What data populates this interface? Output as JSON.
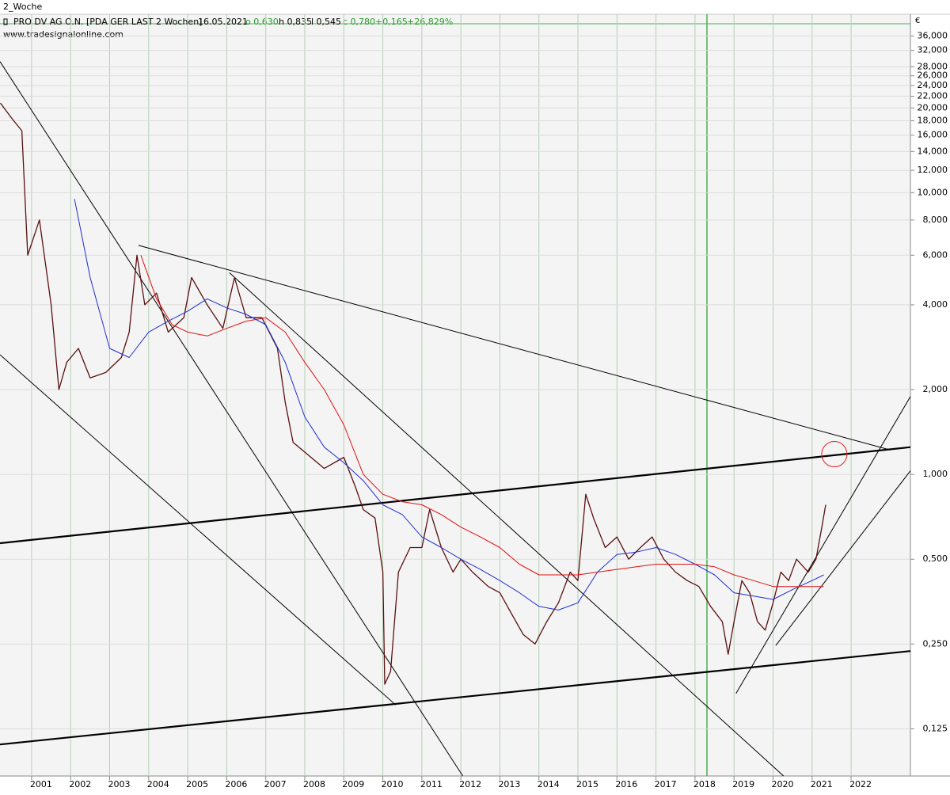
{
  "header": {
    "tab": "2_Woche",
    "instrument": "PRO DV AG O.N. [PDA GER LAST 2 Wochen]",
    "date": "16.05.2021",
    "open": "o 0,630",
    "high": "h 0,835",
    "low": "l 0,545",
    "close": "c 0,780",
    "change": "+0,165",
    "change_pct": "+26,829%",
    "source": "www.tradesignalonline.com",
    "currency": "€"
  },
  "chart_data": {
    "type": "line",
    "log_scale": true,
    "grid": true,
    "xlim": [
      2000.19,
      2023.52
    ],
    "ylim": [
      0.085,
      43
    ],
    "xticks": [
      2001,
      2002,
      2003,
      2004,
      2005,
      2006,
      2007,
      2008,
      2009,
      2010,
      2011,
      2012,
      2013,
      2014,
      2015,
      2016,
      2017,
      2018,
      2019,
      2020,
      2021,
      2022
    ],
    "yticks": [
      {
        "value": 36,
        "label": "36,000"
      },
      {
        "value": 32,
        "label": "32,000"
      },
      {
        "value": 28,
        "label": "28,000"
      },
      {
        "value": 26,
        "label": "26,000"
      },
      {
        "value": 24,
        "label": "24,000"
      },
      {
        "value": 22,
        "label": "22,000"
      },
      {
        "value": 20,
        "label": "20,000"
      },
      {
        "value": 18,
        "label": "18,000"
      },
      {
        "value": 16,
        "label": "16,000"
      },
      {
        "value": 14,
        "label": "14,000"
      },
      {
        "value": 12,
        "label": "12,000"
      },
      {
        "value": 10,
        "label": "10,000"
      },
      {
        "value": 8,
        "label": "8,000"
      },
      {
        "value": 6,
        "label": "6,000"
      },
      {
        "value": 4,
        "label": "4,000"
      },
      {
        "value": 2,
        "label": "2,000"
      },
      {
        "value": 1,
        "label": "1,000"
      },
      {
        "value": 0.5,
        "label": "0,500"
      },
      {
        "value": 0.25,
        "label": "0,250"
      },
      {
        "value": 0.125,
        "label": "0,125"
      }
    ],
    "series": [
      {
        "color": "#5a1010",
        "width": 1.3,
        "x": [
          2000.2,
          2000.5,
          2000.75,
          2000.9,
          2001.2,
          2001.5,
          2001.7,
          2001.9,
          2002.2,
          2002.5,
          2002.9,
          2003.3,
          2003.5,
          2003.7,
          2003.9,
          2004.2,
          2004.5,
          2004.9,
          2005.1,
          2005.5,
          2005.9,
          2006.2,
          2006.5,
          2006.9,
          2007.3,
          2007.5,
          2007.7,
          2008.0,
          2008.5,
          2009.0,
          2009.3,
          2009.5,
          2009.8,
          2010.0,
          2010.05,
          2010.2,
          2010.4,
          2010.7,
          2011.0,
          2011.2,
          2011.5,
          2011.8,
          2012.0,
          2012.3,
          2012.7,
          2013.0,
          2013.3,
          2013.6,
          2013.9,
          2014.2,
          2014.5,
          2014.8,
          2015.0,
          2015.2,
          2015.4,
          2015.7,
          2016.0,
          2016.3,
          2016.6,
          2016.9,
          2017.2,
          2017.5,
          2017.8,
          2018.1,
          2018.4,
          2018.7,
          2018.85,
          2019.0,
          2019.2,
          2019.4,
          2019.6,
          2019.8,
          2020.0,
          2020.2,
          2020.4,
          2020.6,
          2020.9,
          2021.1,
          2021.25,
          2021.35
        ],
        "values": [
          20.8,
          18.3,
          16.6,
          6.0,
          8.0,
          4.0,
          2.0,
          2.5,
          2.8,
          2.2,
          2.3,
          2.6,
          3.2,
          6.0,
          4.0,
          4.4,
          3.2,
          3.6,
          5.0,
          4.0,
          3.3,
          5.0,
          3.6,
          3.6,
          2.8,
          1.8,
          1.3,
          1.2,
          1.05,
          1.15,
          0.9,
          0.75,
          0.7,
          0.45,
          0.18,
          0.2,
          0.45,
          0.55,
          0.55,
          0.75,
          0.55,
          0.45,
          0.5,
          0.45,
          0.4,
          0.38,
          0.32,
          0.27,
          0.25,
          0.3,
          0.35,
          0.45,
          0.42,
          0.85,
          0.7,
          0.55,
          0.6,
          0.5,
          0.55,
          0.6,
          0.5,
          0.45,
          0.42,
          0.4,
          0.34,
          0.3,
          0.23,
          0.3,
          0.42,
          0.38,
          0.3,
          0.28,
          0.35,
          0.45,
          0.42,
          0.5,
          0.45,
          0.5,
          0.65,
          0.78
        ]
      },
      {
        "color": "#1f2fd0",
        "width": 1,
        "x": [
          2002.1,
          2002.5,
          2003,
          2003.5,
          2004,
          2004.5,
          2005,
          2005.5,
          2006,
          2006.5,
          2007,
          2007.5,
          2008,
          2008.5,
          2009,
          2009.5,
          2010,
          2010.5,
          2011,
          2011.5,
          2012,
          2012.5,
          2013,
          2013.5,
          2014,
          2014.5,
          2015,
          2015.5,
          2016,
          2016.5,
          2017,
          2017.5,
          2018,
          2018.5,
          2019,
          2019.5,
          2020,
          2020.5,
          2021,
          2021.3
        ],
        "values": [
          9.5,
          5.0,
          2.8,
          2.6,
          3.2,
          3.5,
          3.8,
          4.2,
          3.9,
          3.7,
          3.4,
          2.5,
          1.6,
          1.25,
          1.1,
          0.95,
          0.78,
          0.72,
          0.6,
          0.55,
          0.5,
          0.46,
          0.42,
          0.38,
          0.34,
          0.33,
          0.35,
          0.45,
          0.52,
          0.53,
          0.55,
          0.52,
          0.48,
          0.44,
          0.38,
          0.37,
          0.36,
          0.39,
          0.42,
          0.44
        ]
      },
      {
        "color": "#e01010",
        "width": 1,
        "x": [
          2003.8,
          2004.2,
          2004.6,
          2005,
          2005.5,
          2006,
          2006.5,
          2007,
          2007.5,
          2008,
          2008.5,
          2009,
          2009.5,
          2010,
          2010.5,
          2011,
          2011.5,
          2012,
          2012.5,
          2013,
          2013.5,
          2014,
          2014.5,
          2015,
          2015.5,
          2016,
          2016.5,
          2017,
          2017.5,
          2018,
          2018.5,
          2019,
          2019.5,
          2020,
          2020.5,
          2021,
          2021.3
        ],
        "values": [
          6.0,
          4.2,
          3.4,
          3.2,
          3.1,
          3.3,
          3.5,
          3.6,
          3.2,
          2.5,
          2.0,
          1.5,
          1.0,
          0.85,
          0.8,
          0.78,
          0.72,
          0.65,
          0.6,
          0.55,
          0.48,
          0.44,
          0.44,
          0.44,
          0.45,
          0.46,
          0.47,
          0.48,
          0.48,
          0.48,
          0.47,
          0.44,
          0.42,
          0.4,
          0.4,
          0.4,
          0.4
        ]
      }
    ],
    "trendlines": [
      {
        "x": [
          2000.19,
          2012.05
        ],
        "values": [
          29.2,
          0.085
        ],
        "width": 1
      },
      {
        "x": [
          2000.19,
          2010.33
        ],
        "values": [
          2.66,
          0.152
        ],
        "width": 1
      },
      {
        "x": [
          2003.74,
          2023.01
        ],
        "values": [
          6.5,
          1.22
        ],
        "width": 1
      },
      {
        "x": [
          2006.07,
          2020.27
        ],
        "values": [
          5.2,
          0.085
        ],
        "width": 1
      },
      {
        "x": [
          2000.19,
          2023.52
        ],
        "values": [
          0.57,
          1.25
        ],
        "width": 2.2
      },
      {
        "x": [
          2000.19,
          2023.52
        ],
        "values": [
          0.11,
          0.236
        ],
        "width": 2.2
      },
      {
        "x": [
          2019.05,
          2023.52
        ],
        "values": [
          0.167,
          1.89
        ],
        "width": 1
      },
      {
        "x": [
          2020.07,
          2023.52
        ],
        "values": [
          0.247,
          1.03
        ],
        "width": 1
      }
    ],
    "circle": {
      "x": 2021.57,
      "value": 1.18,
      "color": "#e02020"
    }
  }
}
